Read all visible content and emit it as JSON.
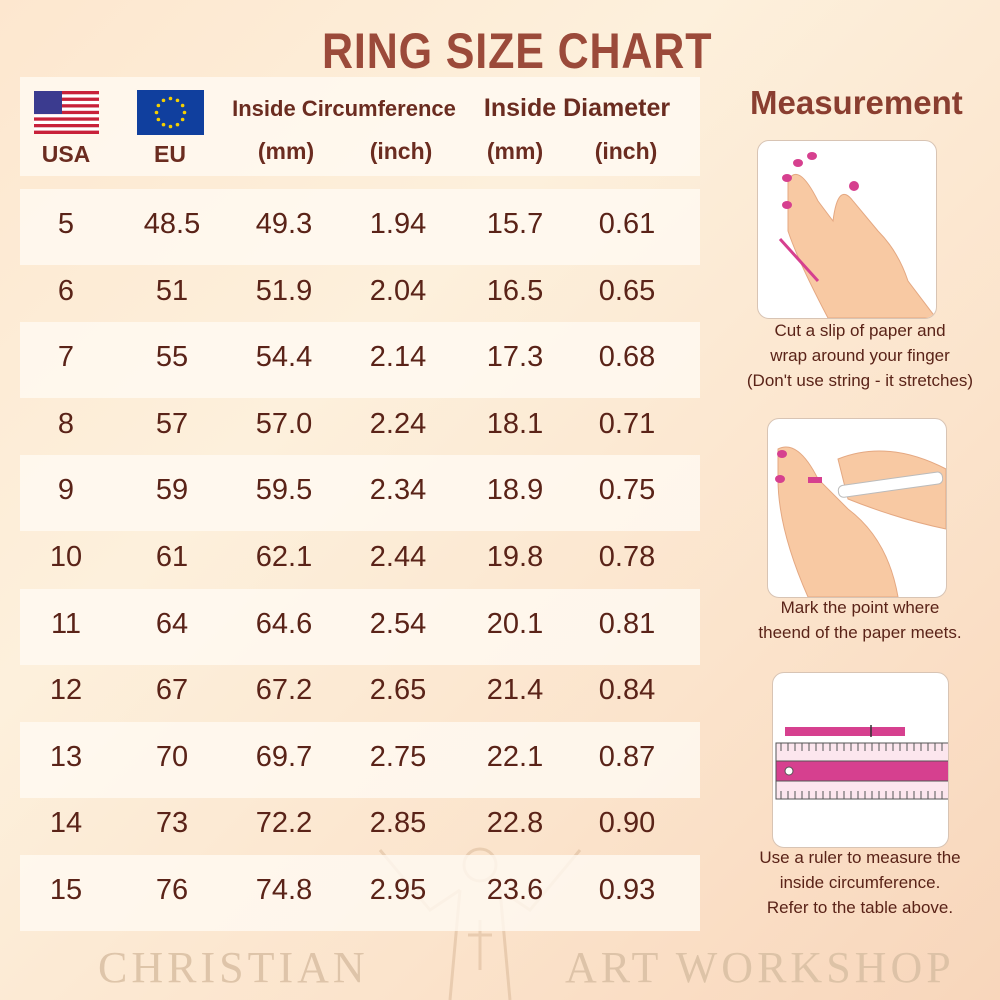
{
  "title": "RING SIZE CHART",
  "header": {
    "usa": "USA",
    "eu": "EU",
    "circumference": "Inside Circumference",
    "diameter": "Inside Diameter",
    "mm": "(mm)",
    "inch": "(inch)",
    "usa_flag_icon": "us-flag",
    "eu_flag_icon": "eu-flag"
  },
  "rows": [
    [
      "5",
      "48.5",
      "49.3",
      "1.94",
      "15.7",
      "0.61"
    ],
    [
      "6",
      "51",
      "51.9",
      "2.04",
      "16.5",
      "0.65"
    ],
    [
      "7",
      "55",
      "54.4",
      "2.14",
      "17.3",
      "0.68"
    ],
    [
      "8",
      "57",
      "57.0",
      "2.24",
      "18.1",
      "0.71"
    ],
    [
      "9",
      "59",
      "59.5",
      "2.34",
      "18.9",
      "0.75"
    ],
    [
      "10",
      "61",
      "62.1",
      "2.44",
      "19.8",
      "0.78"
    ],
    [
      "11",
      "64",
      "64.6",
      "2.54",
      "20.1",
      "0.81"
    ],
    [
      "12",
      "67",
      "67.2",
      "2.65",
      "21.4",
      "0.84"
    ],
    [
      "13",
      "70",
      "69.7",
      "2.75",
      "22.1",
      "0.87"
    ],
    [
      "14",
      "73",
      "72.2",
      "2.85",
      "22.8",
      "0.90"
    ],
    [
      "15",
      "76",
      "74.8",
      "2.95",
      "23.6",
      "0.93"
    ]
  ],
  "measurement": {
    "title": "Measurement",
    "steps": [
      {
        "icon": "hand-paper-strip",
        "lines": [
          "Cut a slip of paper and",
          "wrap around your finger",
          "(Don't use string - it stretches)"
        ]
      },
      {
        "icon": "hand-marking-pen",
        "lines": [
          "Mark the point where",
          "theend of the paper meets."
        ]
      },
      {
        "icon": "ruler-measure",
        "lines": [
          "Use a ruler to measure the",
          "inside circumference.",
          "Refer to the table above."
        ]
      }
    ]
  },
  "watermark": {
    "left": "CHRISTIAN",
    "right": "ART WORKSHOP"
  },
  "colors": {
    "title": "#9b4a3a",
    "text": "#5a2318",
    "accent": "#d6408f"
  }
}
